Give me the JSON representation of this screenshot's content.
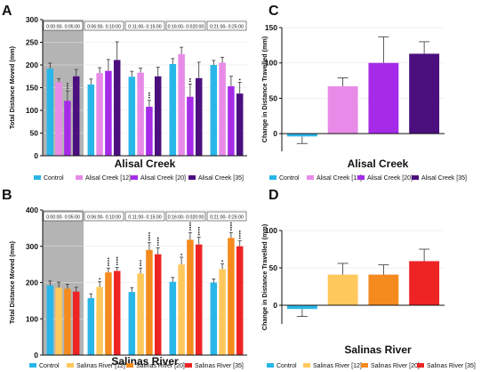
{
  "colors": {
    "control": "#29B6E8",
    "alisal_12": "#E88BE8",
    "alisal_20": "#A62BE8",
    "alisal_35": "#4B0F7E",
    "salinas_12": "#FFC85C",
    "salinas_20": "#F58A1E",
    "salinas_35": "#EE2424",
    "baseline_shade": "#b4b4b4",
    "bar_edge": "#4d4d4d"
  },
  "panels": {
    "A": {
      "letter": "A",
      "legend_title": "Alisal Creek",
      "legend": [
        "Control",
        "Alisal Creek [12]",
        "Alisal Creek [20]",
        "Alisal Creek [35]"
      ]
    },
    "B": {
      "letter": "B",
      "legend_title": "Salinas River",
      "legend": [
        "Control",
        "Salinas River [12]",
        "Salinas River [20]",
        "Salinas River [35]"
      ]
    },
    "C": {
      "letter": "C",
      "legend_title": "Alisal Creek",
      "legend": [
        "Control",
        "Alisal Creek [12]",
        "Alisal Creek  [20]",
        "Alisal Creek [35]"
      ]
    },
    "D": {
      "letter": "D",
      "legend_title": "Salinas River",
      "legend": [
        "Control",
        "Salinas River [12]",
        "Salinas River [20]",
        "Salinas River [35]"
      ]
    }
  },
  "chart_data": [
    {
      "panel": "A",
      "type": "bar",
      "ylabel": "Total Distance Moved (mm)",
      "ylim": [
        0,
        300
      ],
      "yticks": [
        "0",
        "50",
        "100",
        "150",
        "200",
        "250",
        "300"
      ],
      "categories": [
        "0:00:00- 0:05:00",
        "0:06:00- 0:10:00",
        "0:11:00- 0:15:00",
        "0:16:00- 0:020:00",
        "0:21:00- 0:25:00"
      ],
      "series": [
        {
          "name": "Control",
          "values": [
            192,
            157,
            174,
            202,
            200
          ],
          "errors": [
            12,
            12,
            12,
            12,
            10
          ],
          "stars": [
            "",
            "",
            "",
            "",
            ""
          ]
        },
        {
          "name": "Alisal Creek [12]",
          "values": [
            162,
            182,
            183,
            224,
            205
          ],
          "errors": [
            8,
            12,
            10,
            15,
            12
          ],
          "stars": [
            "",
            "",
            "",
            "",
            ""
          ]
        },
        {
          "name": "Alisal Creek [20]",
          "values": [
            121,
            187,
            108,
            130,
            153
          ],
          "errors": [
            22,
            25,
            14,
            28,
            22
          ],
          "stars": [
            "***",
            "",
            "***",
            "**",
            ""
          ]
        },
        {
          "name": "Alisal Creek [35]",
          "values": [
            175,
            211,
            175,
            171,
            137
          ],
          "errors": [
            15,
            40,
            20,
            35,
            25
          ],
          "stars": [
            "",
            "",
            "",
            "",
            "*"
          ]
        }
      ]
    },
    {
      "panel": "B",
      "type": "bar",
      "ylabel": "Total Distance Moved (mm)",
      "ylim": [
        0,
        400
      ],
      "yticks": [
        "0",
        "100",
        "200",
        "300",
        "400"
      ],
      "categories": [
        "0:00:00- 0:05:00",
        "0:06:00- 0:10:00",
        "0:11:00- 0:15:00",
        "0:16:00- 0:020:00",
        "0:21:00- 0:25:00"
      ],
      "series": [
        {
          "name": "Control",
          "values": [
            192,
            157,
            174,
            202,
            200
          ],
          "errors": [
            12,
            12,
            12,
            12,
            10
          ],
          "stars": [
            "",
            "",
            "",
            "",
            ""
          ]
        },
        {
          "name": "Salinas River [12]",
          "values": [
            186,
            188,
            225,
            250,
            237
          ],
          "errors": [
            15,
            15,
            15,
            20,
            15
          ],
          "stars": [
            "",
            "*",
            "***",
            "*",
            "*"
          ]
        },
        {
          "name": "Salinas River [20]",
          "values": [
            183,
            228,
            290,
            318,
            323
          ],
          "errors": [
            12,
            12,
            20,
            20,
            15
          ],
          "stars": [
            "",
            "****",
            "****",
            "****",
            "****"
          ]
        },
        {
          "name": "Salinas River [35]",
          "values": [
            175,
            232,
            278,
            305,
            300
          ],
          "errors": [
            12,
            10,
            18,
            20,
            15
          ],
          "stars": [
            "",
            "****",
            "****",
            "****",
            "****"
          ]
        }
      ]
    },
    {
      "panel": "C",
      "type": "bar",
      "ylabel": "Change in Distance Travelled (mm)",
      "ylim": [
        -25,
        150
      ],
      "yticks": [
        "0",
        "50",
        "100",
        "150"
      ],
      "categories": [
        "Control",
        "Alisal Creek [12]",
        "Alisal Creek  [20]",
        "Alisal Creek [35]"
      ],
      "values": [
        -4,
        67,
        100,
        113
      ],
      "errors": [
        10,
        12,
        37,
        17
      ]
    },
    {
      "panel": "D",
      "type": "bar",
      "ylabel": "Change in Distance Travelled (mm)",
      "ylim": [
        -25,
        100
      ],
      "yticks": [
        "0",
        "50",
        "100"
      ],
      "categories": [
        "Control",
        "Salinas River [12]",
        "Salinas River [20]",
        "Salinas River [35]"
      ],
      "values": [
        -5,
        41,
        41,
        59
      ],
      "errors": [
        10,
        15,
        13,
        16
      ]
    }
  ]
}
